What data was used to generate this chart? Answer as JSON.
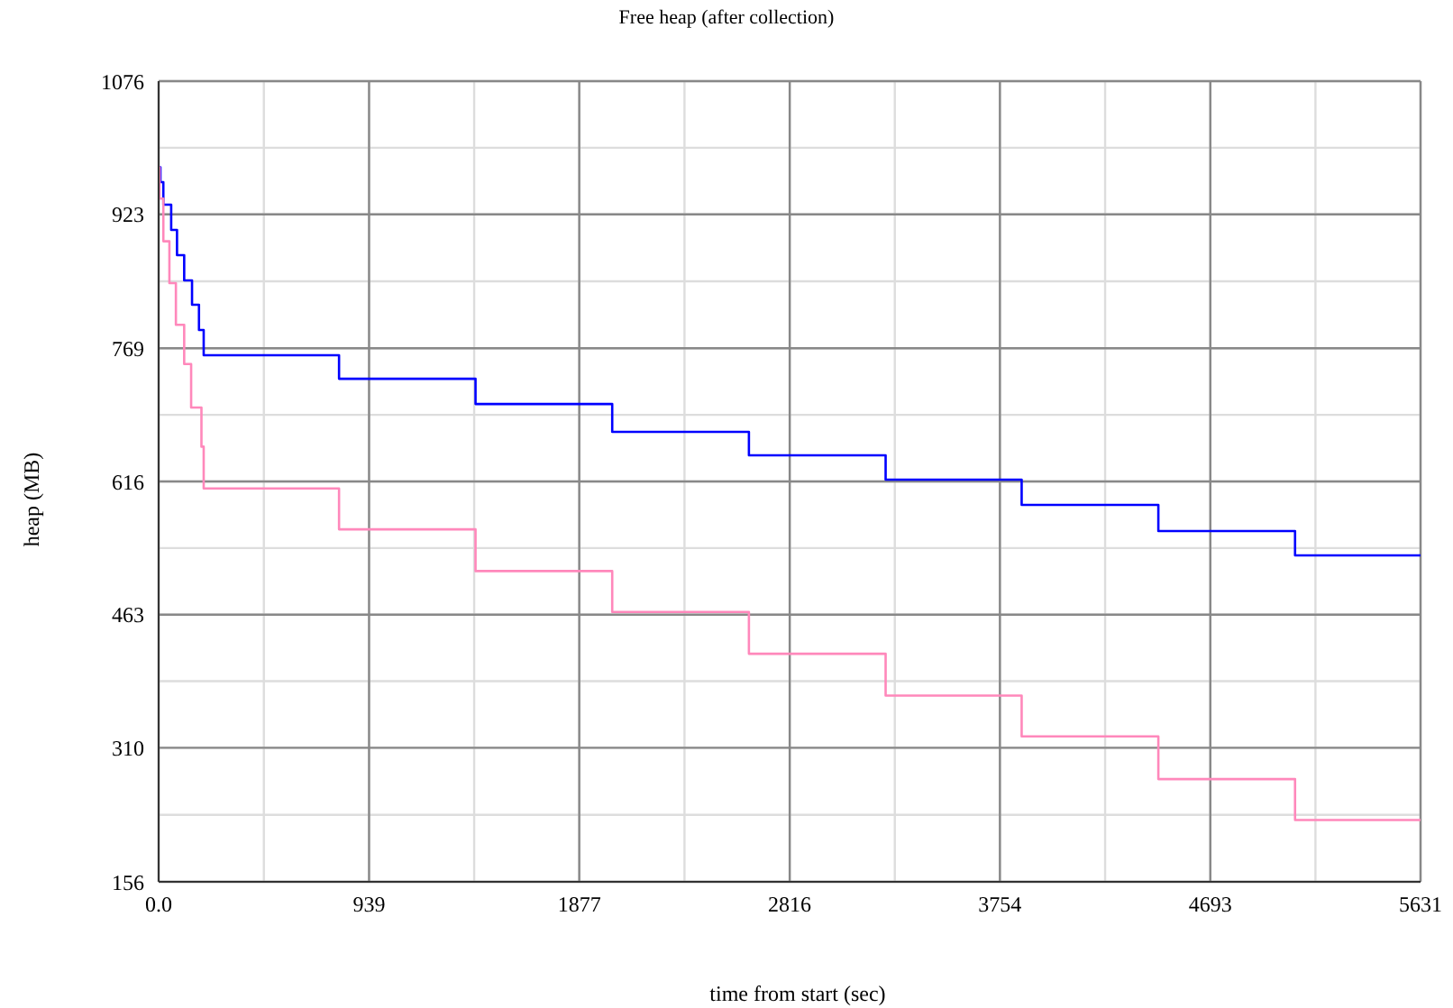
{
  "chart_data": {
    "type": "step",
    "title": "Free heap (after collection)",
    "xlabel": "time from start (sec)",
    "ylabel": "heap (MB)",
    "xlim": [
      0,
      5631
    ],
    "ylim": [
      156,
      1076
    ],
    "xticks": [
      {
        "value": 0,
        "label": "0.0"
      },
      {
        "value": 469.5,
        "label": null
      },
      939,
      {
        "value": 1408,
        "label": null
      },
      1877,
      {
        "value": 2346.5,
        "label": null
      },
      2816,
      {
        "value": 3285,
        "label": null
      },
      3754,
      {
        "value": 4223.5,
        "label": null
      },
      4693,
      {
        "value": 5162,
        "label": null
      },
      5631
    ],
    "yticks": [
      156,
      {
        "value": 233,
        "label": null
      },
      310,
      {
        "value": 386.5,
        "label": null
      },
      463,
      {
        "value": 539.5,
        "label": null
      },
      616,
      {
        "value": 692.5,
        "label": null
      },
      769,
      {
        "value": 846,
        "label": null
      },
      923,
      {
        "value": 999.5,
        "label": null
      },
      1076
    ],
    "grid": true,
    "legend": false,
    "marker": "none",
    "line_style": "solid",
    "series": [
      {
        "color": "#0000ff",
        "x": [
          0,
          8,
          21,
          56,
          82,
          114,
          149,
          180,
          201,
          805,
          1414,
          2024,
          2634,
          3244,
          3851,
          4461,
          5071,
          5631
        ],
        "values": [
          977,
          960,
          934,
          905,
          876,
          847,
          819,
          790,
          761,
          734,
          705,
          673,
          646,
          618,
          589,
          559,
          531,
          531
        ]
      },
      {
        "color": "#ff88bb",
        "x": [
          0,
          4,
          21,
          48,
          77,
          114,
          145,
          191,
          201,
          805,
          1414,
          2024,
          2634,
          3244,
          3851,
          4461,
          5071,
          5631
        ],
        "values": [
          977,
          941,
          892,
          844,
          796,
          751,
          701,
          656,
          608,
          561,
          513,
          466,
          418,
          370,
          323,
          274,
          227,
          227
        ]
      }
    ]
  }
}
